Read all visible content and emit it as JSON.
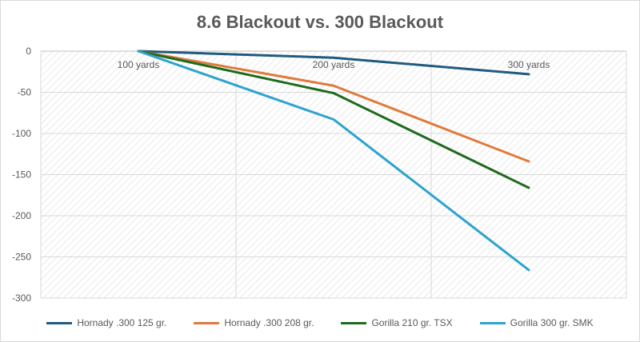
{
  "chart_data": {
    "type": "line",
    "title": "8.6 Blackout vs. 300 Blackout",
    "categories": [
      "100 yards",
      "200 yards",
      "300 yards"
    ],
    "ylim": [
      -300,
      0
    ],
    "yticks": [
      0,
      -50,
      -100,
      -150,
      -200,
      -250,
      -300
    ],
    "grid": true,
    "legend_position": "bottom",
    "series": [
      {
        "name": "Hornady .300 125 gr.",
        "color": "#1f5b7f",
        "values": [
          0,
          -8,
          -28
        ]
      },
      {
        "name": "Hornady .300 208 gr.",
        "color": "#e07a3c",
        "values": [
          0,
          -42,
          -134
        ]
      },
      {
        "name": "Gorilla 210 gr. TSX",
        "color": "#1e6b1e",
        "values": [
          0,
          -51,
          -166
        ]
      },
      {
        "name": "Gorilla 300 gr. SMK",
        "color": "#2fa3cf",
        "values": [
          0,
          -83,
          -266
        ]
      }
    ]
  }
}
